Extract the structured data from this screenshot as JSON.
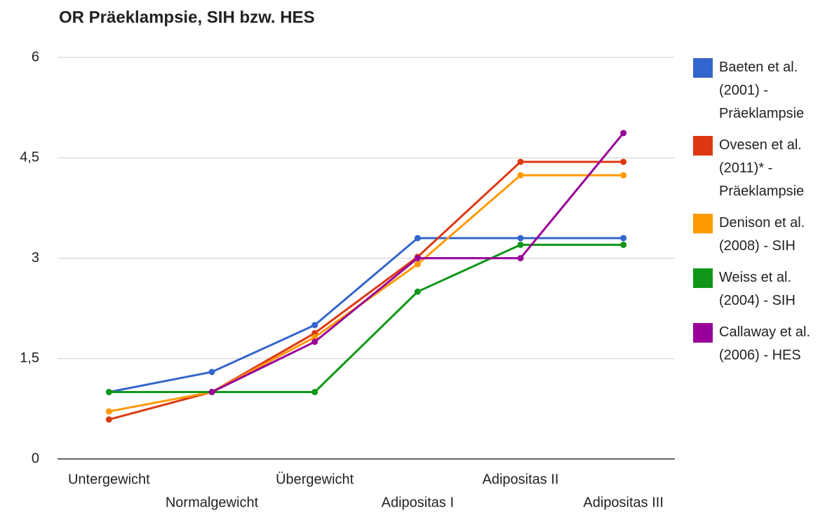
{
  "chart_data": {
    "type": "line",
    "title": "OR Präeklampsie, SIH bzw. HES",
    "categories": [
      "Untergewicht",
      "Normalgewicht",
      "Übergewicht",
      "Adipositas I",
      "Adipositas II",
      "Adipositas III"
    ],
    "series": [
      {
        "name": "Baeten et al. (2001) - Präeklampsie",
        "color": "#3366cc",
        "values": [
          1.0,
          1.3,
          2.0,
          3.3,
          3.3,
          3.3
        ]
      },
      {
        "name": "Ovesen et al. (2011)* - Präeklampsie",
        "color": "#dc3912",
        "values": [
          0.59,
          1.0,
          1.88,
          3.02,
          4.44,
          4.44
        ]
      },
      {
        "name": "Denison et al. (2008) - SIH",
        "color": "#ff9900",
        "values": [
          0.71,
          1.0,
          1.82,
          2.91,
          4.24,
          4.24
        ]
      },
      {
        "name": "Weiss et al. (2004) - SIH",
        "color": "#109618",
        "values": [
          1.0,
          1.0,
          1.0,
          2.5,
          3.2,
          3.2
        ]
      },
      {
        "name": "Callaway et al. (2006) - HES",
        "color": "#990099",
        "values": [
          null,
          1.0,
          1.75,
          3.0,
          3.0,
          4.87
        ]
      }
    ],
    "ylim": [
      0,
      6
    ],
    "yticks": [
      0,
      {
        "value": 1.5,
        "label": "1,5"
      },
      3,
      {
        "value": 4.5,
        "label": "4,5"
      },
      6
    ],
    "grid": true,
    "legend": "right"
  }
}
